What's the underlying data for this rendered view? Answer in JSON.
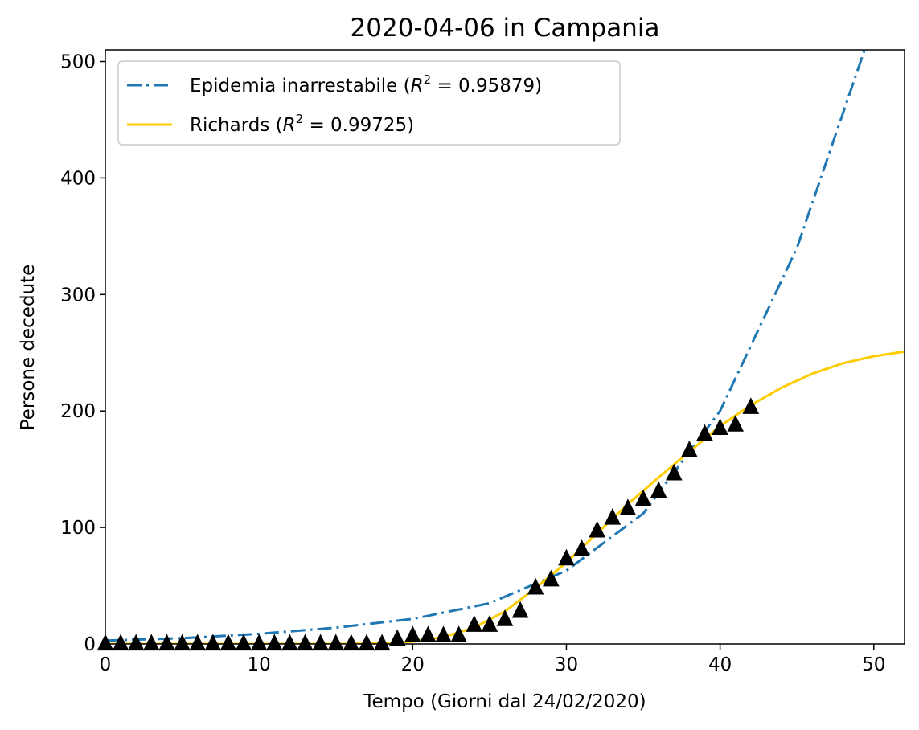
{
  "chart_data": {
    "type": "line",
    "title": "2020-04-06 in Campania",
    "xlabel": "Tempo (Giorni dal 24/02/2020)",
    "ylabel": "Persone decedute",
    "xlim": [
      0,
      52
    ],
    "ylim": [
      0,
      510
    ],
    "xticks": [
      0,
      10,
      20,
      30,
      40,
      50
    ],
    "yticks": [
      0,
      100,
      200,
      300,
      400,
      500
    ],
    "grid": false,
    "legend_position": "top-left",
    "series": [
      {
        "name": "Epidemia inarrestabile (R² = 0.95879)",
        "name_prefix": "Epidemia inarrestabile (",
        "name_r2": "R",
        "name_value": " = 0.95879)",
        "style": "dashdot",
        "color": "#1f77b4",
        "model": "exponential",
        "x": [
          0,
          5,
          10,
          15,
          20,
          25,
          30,
          35,
          40,
          45,
          49.4
        ],
        "values": [
          2.9,
          5.0,
          8.7,
          14.0,
          21.5,
          35.0,
          63.0,
          112.0,
          200.0,
          340.0,
          510.0
        ]
      },
      {
        "name": "Richards (R² = 0.99725)",
        "name_prefix": "Richards (",
        "name_r2": "R",
        "name_value": " = 0.99725)",
        "style": "solid",
        "color": "#ffcc00",
        "model": "richards",
        "x": [
          0,
          5,
          10,
          15,
          18,
          20,
          22,
          24,
          26,
          28,
          30,
          32,
          34,
          36,
          38,
          40,
          42,
          44,
          46,
          48,
          50,
          52
        ],
        "values": [
          0,
          0,
          0,
          0,
          0.5,
          2,
          6,
          14,
          28,
          48,
          70,
          95,
          120,
          143,
          165,
          187,
          205,
          220,
          232,
          241,
          247,
          251
        ]
      }
    ],
    "observed": {
      "marker": "triangle",
      "color": "#000000",
      "x": [
        0,
        1,
        2,
        3,
        4,
        5,
        6,
        7,
        8,
        9,
        10,
        11,
        12,
        13,
        14,
        15,
        16,
        17,
        18,
        19,
        20,
        21,
        22,
        23,
        24,
        25,
        26,
        27,
        28,
        29,
        30,
        31,
        32,
        33,
        34,
        35,
        36,
        37,
        38,
        39,
        40,
        41,
        42
      ],
      "values": [
        0,
        0,
        0,
        0,
        0,
        0,
        0,
        0,
        0,
        0,
        0,
        0,
        0,
        0,
        0,
        0,
        0,
        0,
        0,
        4,
        7,
        7,
        7,
        7,
        16,
        16,
        21,
        28,
        48,
        55,
        73,
        81,
        97,
        108,
        116,
        124,
        131,
        146,
        166,
        180,
        185,
        188,
        203
      ]
    }
  }
}
